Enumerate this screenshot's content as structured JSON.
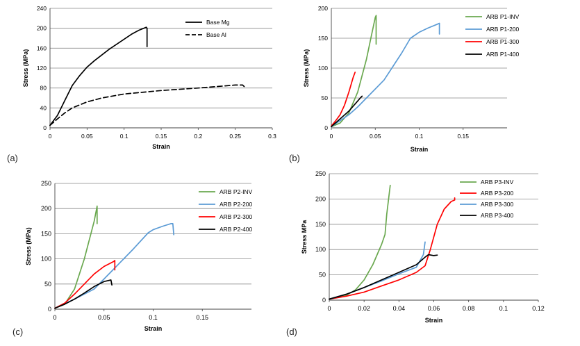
{
  "chart_data": [
    {
      "type": "line",
      "panel_label": "(a)",
      "xlabel": "Strain",
      "ylabel": "Stress (MPa)",
      "xlim": [
        0,
        0.3
      ],
      "ylim": [
        0,
        240
      ],
      "xticks": [
        0,
        0.05,
        0.1,
        0.15,
        0.2,
        0.25,
        0.3
      ],
      "yticks": [
        0,
        40,
        80,
        120,
        160,
        200,
        240
      ],
      "xtick_labels": [
        "0",
        "0.05",
        "0.1",
        "0.15",
        "0.2",
        "0.25",
        "0.3"
      ],
      "ytick_labels": [
        "0",
        "40",
        "80",
        "120",
        "160",
        "200",
        "240"
      ],
      "grid": "horizontal",
      "legend": "top-right",
      "series": [
        {
          "name": "Base Mg",
          "color": "#000000",
          "dash": "solid",
          "points": [
            [
              0,
              5
            ],
            [
              0.01,
              25
            ],
            [
              0.02,
              55
            ],
            [
              0.03,
              85
            ],
            [
              0.04,
              105
            ],
            [
              0.05,
              122
            ],
            [
              0.06,
              135
            ],
            [
              0.08,
              158
            ],
            [
              0.1,
              178
            ],
            [
              0.11,
              188
            ],
            [
              0.12,
              196
            ],
            [
              0.13,
              202
            ],
            [
              0.131,
              200
            ],
            [
              0.131,
              163
            ]
          ]
        },
        {
          "name": "Base Al",
          "color": "#000000",
          "dash": "dashed",
          "points": [
            [
              0,
              5
            ],
            [
              0.01,
              18
            ],
            [
              0.02,
              30
            ],
            [
              0.03,
              40
            ],
            [
              0.05,
              52
            ],
            [
              0.07,
              60
            ],
            [
              0.1,
              68
            ],
            [
              0.15,
              75
            ],
            [
              0.2,
              80
            ],
            [
              0.25,
              86
            ],
            [
              0.26,
              86
            ],
            [
              0.262,
              83
            ]
          ]
        }
      ]
    },
    {
      "type": "line",
      "panel_label": "(b)",
      "xlabel": "Strain",
      "ylabel": "Stress (MPa)",
      "xlim": [
        0,
        0.2
      ],
      "ylim": [
        0,
        200
      ],
      "xticks": [
        0,
        0.05,
        0.1,
        0.15
      ],
      "yticks": [
        0,
        50,
        100,
        150,
        200
      ],
      "xtick_labels": [
        "0",
        "0.05",
        "0.1",
        "0.15"
      ],
      "ytick_labels": [
        "0",
        "50",
        "100",
        "150",
        "200"
      ],
      "grid": "horizontal",
      "legend": "top-right",
      "series": [
        {
          "name": "ARB P1-INV",
          "color": "#6aa84f",
          "dash": "solid",
          "points": [
            [
              0,
              2
            ],
            [
              0.01,
              8
            ],
            [
              0.02,
              25
            ],
            [
              0.03,
              60
            ],
            [
              0.04,
              115
            ],
            [
              0.045,
              150
            ],
            [
              0.05,
              185
            ],
            [
              0.051,
              188
            ],
            [
              0.051,
              140
            ]
          ]
        },
        {
          "name": "ARB P1-200",
          "color": "#5b9bd5",
          "dash": "solid",
          "points": [
            [
              0,
              2
            ],
            [
              0.01,
              12
            ],
            [
              0.02,
              22
            ],
            [
              0.03,
              35
            ],
            [
              0.04,
              50
            ],
            [
              0.06,
              80
            ],
            [
              0.08,
              125
            ],
            [
              0.09,
              150
            ],
            [
              0.1,
              160
            ],
            [
              0.11,
              167
            ],
            [
              0.12,
              173
            ],
            [
              0.123,
              175
            ],
            [
              0.123,
              157
            ]
          ]
        },
        {
          "name": "ARB P1-300",
          "color": "#ff0000",
          "dash": "solid",
          "points": [
            [
              0,
              3
            ],
            [
              0.005,
              12
            ],
            [
              0.01,
              22
            ],
            [
              0.015,
              38
            ],
            [
              0.02,
              60
            ],
            [
              0.025,
              85
            ],
            [
              0.027,
              93
            ]
          ]
        },
        {
          "name": "ARB P1-400",
          "color": "#000000",
          "dash": "solid",
          "points": [
            [
              0,
              2
            ],
            [
              0.01,
              15
            ],
            [
              0.02,
              28
            ],
            [
              0.03,
              45
            ],
            [
              0.033,
              50
            ],
            [
              0.035,
              53
            ]
          ]
        }
      ]
    },
    {
      "type": "line",
      "panel_label": "(c)",
      "xlabel": "Strain",
      "ylabel": "Stress (MPa)",
      "xlim": [
        0,
        0.2
      ],
      "ylim": [
        0,
        250
      ],
      "xticks": [
        0,
        0.05,
        0.1,
        0.15
      ],
      "yticks": [
        0,
        50,
        100,
        150,
        200,
        250
      ],
      "xtick_labels": [
        "0",
        "0.05",
        "0.1",
        "0.15"
      ],
      "ytick_labels": [
        "0",
        "50",
        "100",
        "150",
        "200",
        "250"
      ],
      "grid": "horizontal",
      "legend": "top-right",
      "series": [
        {
          "name": "ARB P2-INV",
          "color": "#6aa84f",
          "dash": "solid",
          "points": [
            [
              0,
              2
            ],
            [
              0.01,
              10
            ],
            [
              0.02,
              40
            ],
            [
              0.03,
              100
            ],
            [
              0.04,
              175
            ],
            [
              0.043,
              205
            ],
            [
              0.043,
              170
            ]
          ]
        },
        {
          "name": "ARB P2-200",
          "color": "#5b9bd5",
          "dash": "solid",
          "points": [
            [
              0,
              2
            ],
            [
              0.02,
              20
            ],
            [
              0.04,
              40
            ],
            [
              0.06,
              80
            ],
            [
              0.08,
              120
            ],
            [
              0.095,
              152
            ],
            [
              0.1,
              158
            ],
            [
              0.11,
              165
            ],
            [
              0.118,
              170
            ],
            [
              0.12,
              170
            ],
            [
              0.121,
              148
            ]
          ]
        },
        {
          "name": "ARB P2-300",
          "color": "#ff0000",
          "dash": "solid",
          "points": [
            [
              0,
              2
            ],
            [
              0.01,
              12
            ],
            [
              0.02,
              30
            ],
            [
              0.03,
              50
            ],
            [
              0.04,
              70
            ],
            [
              0.05,
              85
            ],
            [
              0.06,
              95
            ],
            [
              0.061,
              97
            ],
            [
              0.061,
              78
            ]
          ]
        },
        {
          "name": "ARB P2-400",
          "color": "#000000",
          "dash": "solid",
          "points": [
            [
              0,
              2
            ],
            [
              0.01,
              10
            ],
            [
              0.02,
              20
            ],
            [
              0.03,
              32
            ],
            [
              0.04,
              45
            ],
            [
              0.05,
              55
            ],
            [
              0.057,
              58
            ],
            [
              0.058,
              48
            ]
          ]
        }
      ]
    },
    {
      "type": "line",
      "panel_label": "(d)",
      "xlabel": "Strain",
      "ylabel": "Stress MPa",
      "xlim": [
        0,
        0.12
      ],
      "ylim": [
        0,
        250
      ],
      "xticks": [
        0,
        0.02,
        0.04,
        0.06,
        0.08,
        0.1,
        0.12
      ],
      "yticks": [
        0,
        50,
        100,
        150,
        200,
        250
      ],
      "xtick_labels": [
        "0",
        "0.02",
        "0.04",
        "0.06",
        "0.08",
        "0.1",
        "0.12"
      ],
      "ytick_labels": [
        "0",
        "50",
        "100",
        "150",
        "200",
        "250"
      ],
      "grid": "horizontal",
      "legend": "top-right",
      "series": [
        {
          "name": "ARB P3-INV",
          "color": "#6aa84f",
          "dash": "solid",
          "points": [
            [
              0,
              2
            ],
            [
              0.01,
              10
            ],
            [
              0.015,
              20
            ],
            [
              0.02,
              40
            ],
            [
              0.025,
              70
            ],
            [
              0.03,
              110
            ],
            [
              0.032,
              130
            ],
            [
              0.033,
              170
            ],
            [
              0.035,
              227
            ]
          ]
        },
        {
          "name": "ARB P3-200",
          "color": "#ff0000",
          "dash": "solid",
          "points": [
            [
              0,
              2
            ],
            [
              0.01,
              8
            ],
            [
              0.02,
              16
            ],
            [
              0.03,
              28
            ],
            [
              0.04,
              40
            ],
            [
              0.05,
              55
            ],
            [
              0.055,
              68
            ],
            [
              0.058,
              100
            ],
            [
              0.062,
              150
            ],
            [
              0.066,
              180
            ],
            [
              0.07,
              195
            ],
            [
              0.072,
              198
            ],
            [
              0.072,
              202
            ]
          ]
        },
        {
          "name": "ARB P3-300",
          "color": "#5b9bd5",
          "dash": "solid",
          "points": [
            [
              0,
              2
            ],
            [
              0.01,
              12
            ],
            [
              0.02,
              25
            ],
            [
              0.03,
              38
            ],
            [
              0.04,
              52
            ],
            [
              0.05,
              65
            ],
            [
              0.054,
              90
            ],
            [
              0.055,
              115
            ]
          ]
        },
        {
          "name": "ARB P3-400",
          "color": "#000000",
          "dash": "solid",
          "points": [
            [
              0,
              2
            ],
            [
              0.01,
              12
            ],
            [
              0.02,
              25
            ],
            [
              0.03,
              40
            ],
            [
              0.04,
              55
            ],
            [
              0.05,
              70
            ],
            [
              0.055,
              85
            ],
            [
              0.057,
              90
            ],
            [
              0.06,
              88
            ],
            [
              0.062,
              89
            ]
          ]
        }
      ]
    }
  ]
}
